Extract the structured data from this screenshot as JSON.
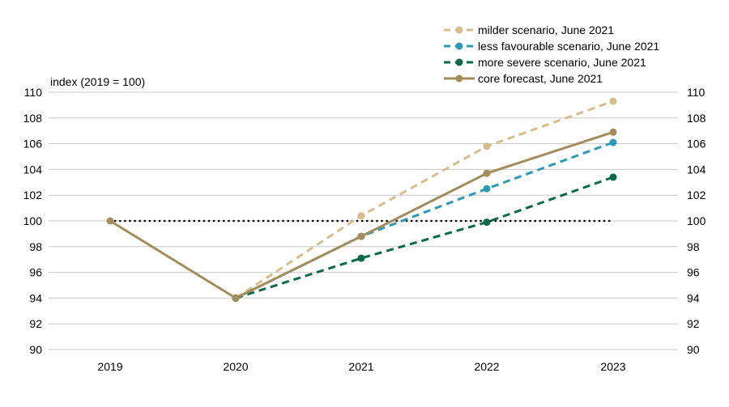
{
  "chart_data": {
    "type": "line",
    "ylabel": "index (2019 = 100)",
    "x": [
      "2019",
      "2020",
      "2021",
      "2022",
      "2023"
    ],
    "ylim": [
      90,
      110
    ],
    "yticks": [
      "90",
      "92",
      "94",
      "96",
      "98",
      "100",
      "102",
      "104",
      "106",
      "108",
      "110"
    ],
    "grid": true,
    "secondary_y_axis": true,
    "legend_position": "top-right",
    "reference_line": {
      "y": 100,
      "style": "dotted",
      "color": "#000000"
    },
    "series": [
      {
        "name": "milder scenario, June 2021",
        "style": "dashed",
        "color": "#d4bf8c",
        "x": [
          "2020",
          "2021",
          "2022",
          "2023"
        ],
        "values": [
          94.0,
          100.4,
          105.8,
          109.3
        ]
      },
      {
        "name": "less favourable scenario, June 2021",
        "style": "dashed",
        "color": "#2a9bb5",
        "x": [
          "2020",
          "2021",
          "2022",
          "2023"
        ],
        "values": [
          94.0,
          98.8,
          102.5,
          106.1
        ]
      },
      {
        "name": "more severe scenario, June 2021",
        "style": "dashed",
        "color": "#0a6b4a",
        "x": [
          "2020",
          "2021",
          "2022",
          "2023"
        ],
        "values": [
          94.0,
          97.1,
          99.9,
          103.4
        ]
      },
      {
        "name": "core forecast, June 2021",
        "style": "solid",
        "color": "#a38d5a",
        "x": [
          "2019",
          "2020",
          "2021",
          "2022",
          "2023"
        ],
        "values": [
          100.0,
          94.0,
          98.8,
          103.7,
          106.9
        ]
      }
    ]
  }
}
